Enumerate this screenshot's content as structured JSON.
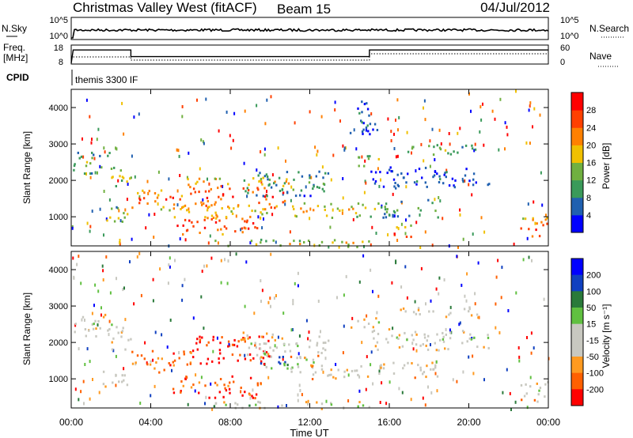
{
  "header": {
    "title": "Christmas Valley West (fitACF)",
    "beam": "Beam 15",
    "date": "04/Jul/2012"
  },
  "top_panel": {
    "left_label": "N.Sky",
    "left_ticks": [
      "10^5",
      "10^0"
    ],
    "right_label": "N.Search",
    "right_ticks": [
      "10^5",
      "10^0"
    ]
  },
  "freq_panel": {
    "left_label_1": "Freq.",
    "left_label_2": "[MHz]",
    "left_ticks": [
      "18",
      "8"
    ],
    "right_label": "Nave",
    "right_ticks": [
      "60",
      "0"
    ]
  },
  "cpid": {
    "label": "CPID",
    "value": "themis 3300 IF"
  },
  "colors": {
    "power_scale": [
      "#0000ff",
      "#2060b0",
      "#3a9a5a",
      "#70b040",
      "#f0c000",
      "#ff8000",
      "#ff4000",
      "#ff0000"
    ],
    "velocity_scale": [
      "#ff0000",
      "#ff6000",
      "#ff9a20",
      "#c8c8c0",
      "#c8c8c0",
      "#60c040",
      "#2a7a3a",
      "#1040c0",
      "#0000ff"
    ],
    "gray": "#c8c8c0"
  },
  "chart_data": [
    {
      "type": "heatmap",
      "name": "power",
      "ylabel": "Slant Range [km]",
      "y_ticks": [
        "1000",
        "2000",
        "3000",
        "4000"
      ],
      "ylim": [
        200,
        4500
      ],
      "xlim_hours": [
        0,
        24
      ],
      "colorbar_label": "Power [dB]",
      "colorbar_ticks": [
        "4",
        "8",
        "12",
        "16",
        "20",
        "24",
        "28"
      ],
      "bands": [
        {
          "t0": 0.0,
          "t1": 2.0,
          "r0": 2200,
          "r1": 2800,
          "level": 0.45
        },
        {
          "t0": 2.0,
          "t1": 3.0,
          "r0": 1800,
          "r1": 2500,
          "level": 0.55
        },
        {
          "t0": 1.5,
          "t1": 2.8,
          "r0": 800,
          "r1": 1300,
          "level": 0.55
        },
        {
          "t0": 3.0,
          "t1": 6.0,
          "r0": 1200,
          "r1": 1800,
          "level": 0.85
        },
        {
          "t0": 5.8,
          "t1": 11.0,
          "r0": 1100,
          "r1": 2100,
          "level": 0.9
        },
        {
          "t0": 5.0,
          "t1": 9.5,
          "r0": 500,
          "r1": 1100,
          "level": 0.95
        },
        {
          "t0": 11.0,
          "t1": 15.5,
          "r0": 1000,
          "r1": 1400,
          "level": 0.65
        },
        {
          "t0": 8.5,
          "t1": 13.0,
          "r0": 1600,
          "r1": 2300,
          "level": 0.35
        },
        {
          "t0": 14.0,
          "t1": 15.5,
          "r0": 2400,
          "r1": 2700,
          "level": 0.5
        },
        {
          "t0": 15.5,
          "t1": 18.5,
          "r0": 1000,
          "r1": 1500,
          "level": 0.4
        },
        {
          "t0": 16.2,
          "t1": 17.2,
          "r0": 400,
          "r1": 800,
          "level": 0.95
        },
        {
          "t0": 16.5,
          "t1": 20.5,
          "r0": 2700,
          "r1": 3000,
          "level": 0.45
        },
        {
          "t0": 15.0,
          "t1": 21.0,
          "r0": 1800,
          "r1": 2400,
          "level": 0.2
        },
        {
          "t0": 22.5,
          "t1": 24.0,
          "r0": 400,
          "r1": 1000,
          "level": 0.95
        },
        {
          "t0": 7.0,
          "t1": 15.0,
          "r0": 200,
          "r1": 400,
          "level": 0.6
        },
        {
          "t0": 14.0,
          "t1": 15.5,
          "r0": 3300,
          "r1": 4200,
          "level": 0.2
        }
      ]
    },
    {
      "type": "heatmap",
      "name": "velocity",
      "ylabel": "Slant Range [km]",
      "y_ticks": [
        "1000",
        "2000",
        "3000",
        "4000"
      ],
      "ylim": [
        200,
        4500
      ],
      "xlim_hours": [
        0,
        24
      ],
      "xlabel": "Time UT",
      "x_ticks": [
        "00:00",
        "04:00",
        "08:00",
        "12:00",
        "16:00",
        "20:00",
        "00:00"
      ],
      "colorbar_label": "Velocity [m s⁻¹]",
      "colorbar_ticks": [
        "200",
        "100",
        "50",
        "15",
        "-15",
        "-50",
        "-100",
        "-200"
      ],
      "bands": [
        {
          "t0": 0.0,
          "t1": 2.0,
          "r0": 2200,
          "r1": 2800,
          "level": 0.5
        },
        {
          "t0": 2.0,
          "t1": 3.0,
          "r0": 1800,
          "r1": 2500,
          "level": 0.5
        },
        {
          "t0": 1.5,
          "t1": 2.8,
          "r0": 800,
          "r1": 1300,
          "level": 0.5
        },
        {
          "t0": 3.0,
          "t1": 6.0,
          "r0": 1200,
          "r1": 1800,
          "level": 0.25
        },
        {
          "t0": 6.0,
          "t1": 10.0,
          "r0": 1400,
          "r1": 2200,
          "level": 0.05
        },
        {
          "t0": 9.5,
          "t1": 11.5,
          "r0": 1300,
          "r1": 1800,
          "level": 0.9
        },
        {
          "t0": 11.0,
          "t1": 12.2,
          "r0": 1300,
          "r1": 1700,
          "level": 0.65
        },
        {
          "t0": 5.0,
          "t1": 9.5,
          "r0": 500,
          "r1": 1100,
          "level": 0.2
        },
        {
          "t0": 11.0,
          "t1": 15.5,
          "r0": 1000,
          "r1": 1400,
          "level": 0.5
        },
        {
          "t0": 8.5,
          "t1": 13.0,
          "r0": 1600,
          "r1": 2300,
          "level": 0.5
        },
        {
          "t0": 14.0,
          "t1": 15.5,
          "r0": 2400,
          "r1": 2700,
          "level": 0.5
        },
        {
          "t0": 15.5,
          "t1": 18.5,
          "r0": 1000,
          "r1": 1500,
          "level": 0.5
        },
        {
          "t0": 16.5,
          "t1": 20.5,
          "r0": 2700,
          "r1": 3000,
          "level": 0.5
        },
        {
          "t0": 15.0,
          "t1": 21.0,
          "r0": 1800,
          "r1": 2400,
          "level": 0.5
        },
        {
          "t0": 22.5,
          "t1": 24.0,
          "r0": 400,
          "r1": 1000,
          "level": 0.5
        },
        {
          "t0": 7.0,
          "t1": 15.0,
          "r0": 200,
          "r1": 400,
          "level": 0.6
        }
      ]
    }
  ]
}
